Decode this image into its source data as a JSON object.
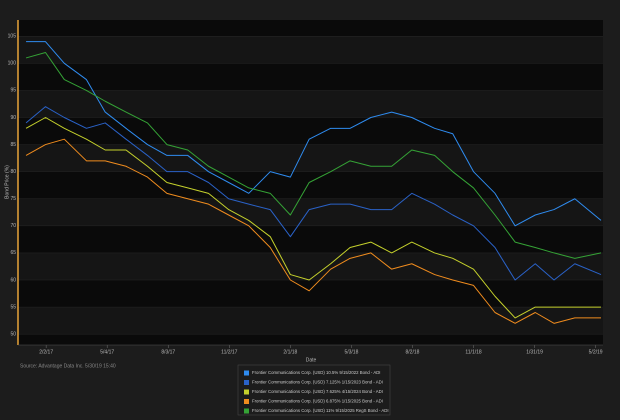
{
  "chart_data": {
    "type": "line",
    "x_label": "Date",
    "y_label": "Bond Price (%)",
    "source": "Source: Advantage Data Inc. 5/30/19 15:40",
    "x": [
      "1/3/17",
      "2/1/17",
      "3/1/17",
      "4/3/17",
      "5/1/17",
      "6/1/17",
      "7/3/17",
      "8/1/17",
      "9/1/17",
      "10/2/17",
      "11/1/17",
      "12/1/17",
      "1/2/18",
      "2/1/18",
      "3/1/18",
      "4/2/18",
      "5/1/18",
      "6/1/18",
      "7/2/18",
      "8/1/18",
      "9/4/18",
      "10/1/18",
      "11/1/18",
      "12/3/18",
      "1/2/19",
      "2/1/19",
      "3/1/19",
      "4/1/19",
      "5/10/19"
    ],
    "xlim": [
      "12/22/16",
      "5/13/19"
    ],
    "xticks": [
      "2/2/17",
      "5/4/17",
      "8/3/17",
      "11/2/17",
      "2/1/18",
      "5/3/18",
      "8/2/18",
      "11/1/18",
      "1/31/19",
      "5/2/19"
    ],
    "ylim": [
      48,
      108
    ],
    "yticks": [
      50,
      55,
      60,
      65,
      70,
      75,
      80,
      85,
      90,
      95,
      100,
      105
    ],
    "series": [
      {
        "name": "Frontier Communications Corp. (USD) 10.5% 9/15/2022 Bond - ADI",
        "color": "#2f8cf0",
        "values": [
          104,
          104,
          100,
          97,
          91,
          88,
          85,
          83,
          83,
          80,
          78,
          76,
          80,
          79,
          86,
          88,
          88,
          90,
          91,
          90,
          88,
          87,
          80,
          76,
          70,
          72,
          73,
          75,
          71
        ]
      },
      {
        "name": "Frontier Communications Corp. (USD) 7.125% 1/15/2023 Bond - ADI",
        "color": "#2a62c8",
        "values": [
          89,
          92,
          90,
          88,
          89,
          86,
          83,
          80,
          80,
          78,
          75,
          74,
          73,
          68,
          73,
          74,
          74,
          73,
          73,
          76,
          74,
          72,
          70,
          66,
          60,
          63,
          60,
          63,
          61
        ]
      },
      {
        "name": "Frontier Communications Corp. (USD) 7.625% 4/15/2024 Bond - ADI",
        "color": "#c5d12c",
        "values": [
          88,
          90,
          88,
          86,
          84,
          84,
          81,
          78,
          77,
          76,
          73,
          71,
          68,
          61,
          60,
          63,
          66,
          67,
          65,
          67,
          65,
          64,
          62,
          57,
          53,
          55,
          55,
          55,
          55
        ]
      },
      {
        "name": "Frontier Communications Corp. (USD) 6.875% 1/15/2025 Bond - ADI",
        "color": "#f08c1e",
        "values": [
          83,
          85,
          86,
          82,
          82,
          81,
          79,
          76,
          75,
          74,
          72,
          70,
          66,
          60,
          58,
          62,
          64,
          65,
          62,
          63,
          61,
          60,
          59,
          54,
          52,
          54,
          52,
          53,
          53
        ]
      },
      {
        "name": "Frontier Communications Corp. (USD) 11% 9/15/2025 RegS Bond - ADI",
        "color": "#35a336",
        "values": [
          101,
          102,
          97,
          95,
          93,
          91,
          89,
          85,
          84,
          81,
          79,
          77,
          76,
          72,
          78,
          80,
          82,
          81,
          81,
          84,
          83,
          80,
          77,
          72,
          67,
          66,
          65,
          64,
          65
        ]
      }
    ]
  }
}
